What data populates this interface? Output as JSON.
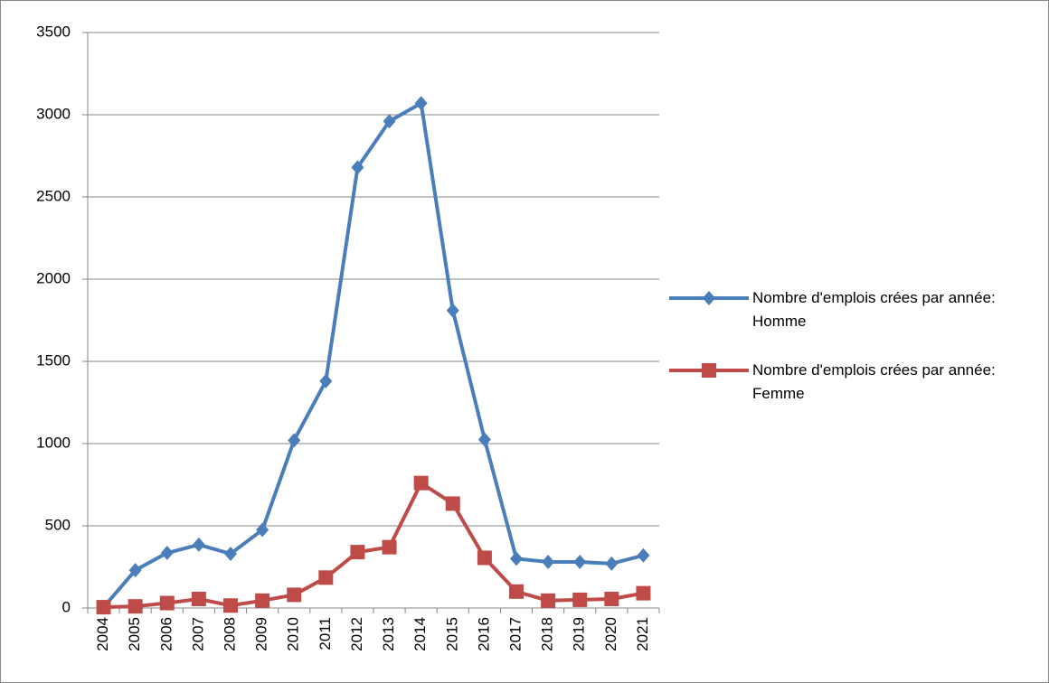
{
  "chart_data": {
    "type": "line",
    "x": [
      "2004",
      "2005",
      "2006",
      "2007",
      "2008",
      "2009",
      "2010",
      "2011",
      "2012",
      "2013",
      "2014",
      "2015",
      "2016",
      "2017",
      "2018",
      "2019",
      "2020",
      "2021"
    ],
    "series": [
      {
        "name": "Nombre d'emplois crées par année: Homme",
        "color": "#4a7ebb",
        "marker": "diamond",
        "values": [
          5,
          230,
          335,
          385,
          330,
          475,
          1020,
          1380,
          2680,
          2960,
          3070,
          1810,
          1025,
          300,
          280,
          280,
          270,
          320
        ]
      },
      {
        "name": "Nombre d'emplois crées par année: Femme",
        "color": "#be4b48",
        "marker": "square",
        "values": [
          5,
          10,
          30,
          55,
          15,
          45,
          80,
          185,
          340,
          370,
          760,
          635,
          305,
          100,
          45,
          50,
          55,
          90
        ]
      }
    ],
    "ylim": [
      0,
      3500
    ],
    "yticks": [
      0,
      500,
      1000,
      1500,
      2000,
      2500,
      3000,
      3500
    ],
    "grid": true,
    "legend": "right"
  }
}
